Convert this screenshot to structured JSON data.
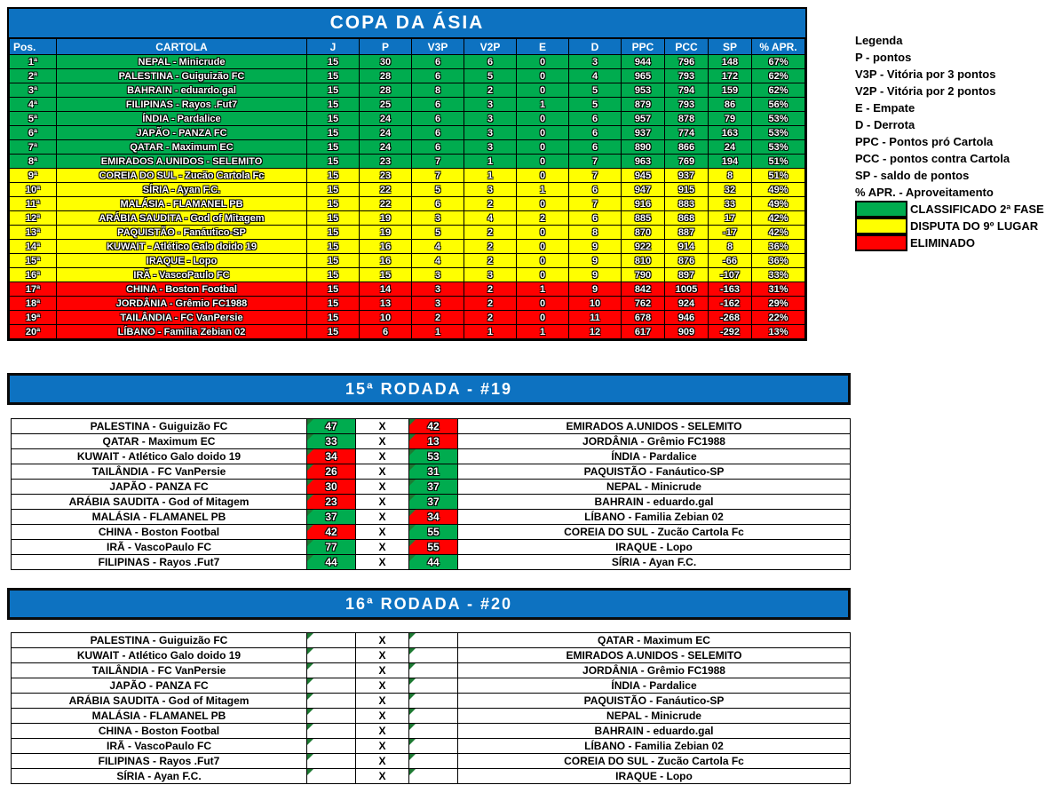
{
  "title": "COPA DA ÁSIA",
  "colors": {
    "header_blue": "#0D72C1",
    "classified_green": "#00AC4F",
    "playoff_yellow": "#FFFF00",
    "eliminated_red": "#FF0000",
    "corner_flag_green": "#1E7A33"
  },
  "standings": {
    "columns": [
      "Pos.",
      "CARTOLA",
      "J",
      "P",
      "V3P",
      "V2P",
      "E",
      "D",
      "PPC",
      "PCC",
      "SP",
      "% APR."
    ],
    "rows": [
      {
        "pos": "1ª",
        "team": "NEPAL - Minicrude",
        "j": "15",
        "p": "30",
        "v3p": "6",
        "v2p": "6",
        "e": "0",
        "d": "3",
        "ppc": "944",
        "pcc": "796",
        "sp": "148",
        "apr": "67%",
        "status": "green"
      },
      {
        "pos": "2ª",
        "team": "PALESTINA - Guiguizão FC",
        "j": "15",
        "p": "28",
        "v3p": "6",
        "v2p": "5",
        "e": "0",
        "d": "4",
        "ppc": "965",
        "pcc": "793",
        "sp": "172",
        "apr": "62%",
        "status": "green"
      },
      {
        "pos": "3ª",
        "team": "BAHRAIN - eduardo.gal",
        "j": "15",
        "p": "28",
        "v3p": "8",
        "v2p": "2",
        "e": "0",
        "d": "5",
        "ppc": "953",
        "pcc": "794",
        "sp": "159",
        "apr": "62%",
        "status": "green"
      },
      {
        "pos": "4ª",
        "team": "FILIPINAS - Rayos .Fut7",
        "j": "15",
        "p": "25",
        "v3p": "6",
        "v2p": "3",
        "e": "1",
        "d": "5",
        "ppc": "879",
        "pcc": "793",
        "sp": "86",
        "apr": "56%",
        "status": "green"
      },
      {
        "pos": "5ª",
        "team": "ÍNDIA - Pardalice",
        "j": "15",
        "p": "24",
        "v3p": "6",
        "v2p": "3",
        "e": "0",
        "d": "6",
        "ppc": "957",
        "pcc": "878",
        "sp": "79",
        "apr": "53%",
        "status": "green"
      },
      {
        "pos": "6ª",
        "team": "JAPÃO - PANZA FC",
        "j": "15",
        "p": "24",
        "v3p": "6",
        "v2p": "3",
        "e": "0",
        "d": "6",
        "ppc": "937",
        "pcc": "774",
        "sp": "163",
        "apr": "53%",
        "status": "green"
      },
      {
        "pos": "7ª",
        "team": "QATAR - Maximum EC",
        "j": "15",
        "p": "24",
        "v3p": "6",
        "v2p": "3",
        "e": "0",
        "d": "6",
        "ppc": "890",
        "pcc": "866",
        "sp": "24",
        "apr": "53%",
        "status": "green"
      },
      {
        "pos": "8ª",
        "team": "EMIRADOS A.UNIDOS - SELEMITO",
        "j": "15",
        "p": "23",
        "v3p": "7",
        "v2p": "1",
        "e": "0",
        "d": "7",
        "ppc": "963",
        "pcc": "769",
        "sp": "194",
        "apr": "51%",
        "status": "green"
      },
      {
        "pos": "9ª",
        "team": "COREIA DO SUL - Zucão Cartola Fc",
        "j": "15",
        "p": "23",
        "v3p": "7",
        "v2p": "1",
        "e": "0",
        "d": "7",
        "ppc": "945",
        "pcc": "937",
        "sp": "8",
        "apr": "51%",
        "status": "yellow"
      },
      {
        "pos": "10ª",
        "team": "SÍRIA - Ayan F.C.",
        "j": "15",
        "p": "22",
        "v3p": "5",
        "v2p": "3",
        "e": "1",
        "d": "6",
        "ppc": "947",
        "pcc": "915",
        "sp": "32",
        "apr": "49%",
        "status": "yellow"
      },
      {
        "pos": "11ª",
        "team": "MALÁSIA - FLAMANEL PB",
        "j": "15",
        "p": "22",
        "v3p": "6",
        "v2p": "2",
        "e": "0",
        "d": "7",
        "ppc": "916",
        "pcc": "883",
        "sp": "33",
        "apr": "49%",
        "status": "yellow"
      },
      {
        "pos": "12ª",
        "team": "ARÁBIA SAUDITA - God of Mitagem",
        "j": "15",
        "p": "19",
        "v3p": "3",
        "v2p": "4",
        "e": "2",
        "d": "6",
        "ppc": "885",
        "pcc": "868",
        "sp": "17",
        "apr": "42%",
        "status": "yellow"
      },
      {
        "pos": "13ª",
        "team": "PAQUISTÃO - Fanáutico-SP",
        "j": "15",
        "p": "19",
        "v3p": "5",
        "v2p": "2",
        "e": "0",
        "d": "8",
        "ppc": "870",
        "pcc": "887",
        "sp": "-17",
        "apr": "42%",
        "status": "yellow"
      },
      {
        "pos": "14ª",
        "team": "KUWAIT - Atlético Galo doido 19",
        "j": "15",
        "p": "16",
        "v3p": "4",
        "v2p": "2",
        "e": "0",
        "d": "9",
        "ppc": "922",
        "pcc": "914",
        "sp": "8",
        "apr": "36%",
        "status": "yellow"
      },
      {
        "pos": "15ª",
        "team": "IRAQUE - Lopo",
        "j": "15",
        "p": "16",
        "v3p": "4",
        "v2p": "2",
        "e": "0",
        "d": "9",
        "ppc": "810",
        "pcc": "876",
        "sp": "-66",
        "apr": "36%",
        "status": "yellow"
      },
      {
        "pos": "16ª",
        "team": "IRÃ - VascoPaulo FC",
        "j": "15",
        "p": "15",
        "v3p": "3",
        "v2p": "3",
        "e": "0",
        "d": "9",
        "ppc": "790",
        "pcc": "897",
        "sp": "-107",
        "apr": "33%",
        "status": "yellow"
      },
      {
        "pos": "17ª",
        "team": "CHINA - Boston Footbal",
        "j": "15",
        "p": "14",
        "v3p": "3",
        "v2p": "2",
        "e": "1",
        "d": "9",
        "ppc": "842",
        "pcc": "1005",
        "sp": "-163",
        "apr": "31%",
        "status": "red"
      },
      {
        "pos": "18ª",
        "team": "JORDÂNIA - Grêmio FC1988",
        "j": "15",
        "p": "13",
        "v3p": "3",
        "v2p": "2",
        "e": "0",
        "d": "10",
        "ppc": "762",
        "pcc": "924",
        "sp": "-162",
        "apr": "29%",
        "status": "red"
      },
      {
        "pos": "19ª",
        "team": "TAILÂNDIA - FC VanPersie",
        "j": "15",
        "p": "10",
        "v3p": "2",
        "v2p": "2",
        "e": "0",
        "d": "11",
        "ppc": "678",
        "pcc": "946",
        "sp": "-268",
        "apr": "22%",
        "status": "red"
      },
      {
        "pos": "20ª",
        "team": "LÍBANO - Familia Zebian 02",
        "j": "15",
        "p": "6",
        "v3p": "1",
        "v2p": "1",
        "e": "1",
        "d": "12",
        "ppc": "617",
        "pcc": "909",
        "sp": "-292",
        "apr": "13%",
        "status": "red"
      }
    ]
  },
  "legend": {
    "lines": [
      "Legenda",
      "P - pontos",
      "V3P - Vitória por 3 pontos",
      "V2P - Vitória por 2 pontos",
      "E - Empate",
      "D - Derrota",
      "PPC - Pontos pró Cartola",
      "PCC - pontos contra Cartola",
      "SP - saldo de pontos",
      "% APR. - Aproveitamento"
    ],
    "statuses": [
      {
        "color": "green",
        "label": "CLASSIFICADO 2ª FASE"
      },
      {
        "color": "yellow",
        "label": "DISPUTA DO 9º LUGAR"
      },
      {
        "color": "red",
        "label": "ELIMINADO"
      }
    ]
  },
  "rounds": [
    {
      "title": "15ª RODADA - #19",
      "x_label": "X",
      "matches": [
        {
          "home": "PALESTINA - Guiguizão FC",
          "home_score": "47",
          "home_result": "green",
          "away_score": "42",
          "away_result": "red",
          "away": "EMIRADOS A.UNIDOS - SELEMITO"
        },
        {
          "home": "QATAR - Maximum EC",
          "home_score": "33",
          "home_result": "green",
          "away_score": "13",
          "away_result": "red",
          "away": "JORDÂNIA - Grêmio FC1988"
        },
        {
          "home": "KUWAIT - Atlético Galo doido 19",
          "home_score": "34",
          "home_result": "red",
          "away_score": "53",
          "away_result": "green",
          "away": "ÍNDIA - Pardalice"
        },
        {
          "home": "TAILÂNDIA - FC VanPersie",
          "home_score": "26",
          "home_result": "red",
          "away_score": "31",
          "away_result": "green",
          "away": "PAQUISTÃO - Fanáutico-SP"
        },
        {
          "home": "JAPÃO - PANZA FC",
          "home_score": "30",
          "home_result": "red",
          "away_score": "37",
          "away_result": "green",
          "away": "NEPAL - Minicrude"
        },
        {
          "home": "ARÁBIA SAUDITA - God of Mitagem",
          "home_score": "23",
          "home_result": "red",
          "away_score": "37",
          "away_result": "green",
          "away": "BAHRAIN - eduardo.gal"
        },
        {
          "home": "MALÁSIA - FLAMANEL PB",
          "home_score": "37",
          "home_result": "green",
          "away_score": "34",
          "away_result": "red",
          "away": "LÍBANO - Familia Zebian 02"
        },
        {
          "home": "CHINA - Boston Footbal",
          "home_score": "42",
          "home_result": "red",
          "away_score": "55",
          "away_result": "green",
          "away": "COREIA DO SUL - Zucão Cartola Fc"
        },
        {
          "home": "IRÃ - VascoPaulo FC",
          "home_score": "77",
          "home_result": "green",
          "away_score": "55",
          "away_result": "red",
          "away": "IRAQUE - Lopo"
        },
        {
          "home": "FILIPINAS - Rayos .Fut7",
          "home_score": "44",
          "home_result": "green",
          "away_score": "44",
          "away_result": "green",
          "away": "SÍRIA - Ayan F.C."
        }
      ]
    },
    {
      "title": "16ª RODADA - #20",
      "x_label": "X",
      "matches": [
        {
          "home": "PALESTINA - Guiguizão FC",
          "home_score": "",
          "home_result": "none",
          "away_score": "",
          "away_result": "none",
          "away": "QATAR - Maximum EC"
        },
        {
          "home": "KUWAIT - Atlético Galo doido 19",
          "home_score": "",
          "home_result": "none",
          "away_score": "",
          "away_result": "none",
          "away": "EMIRADOS A.UNIDOS - SELEMITO"
        },
        {
          "home": "TAILÂNDIA - FC VanPersie",
          "home_score": "",
          "home_result": "none",
          "away_score": "",
          "away_result": "none",
          "away": "JORDÂNIA - Grêmio FC1988"
        },
        {
          "home": "JAPÃO - PANZA FC",
          "home_score": "",
          "home_result": "none",
          "away_score": "",
          "away_result": "none",
          "away": "ÍNDIA - Pardalice"
        },
        {
          "home": "ARÁBIA SAUDITA - God of Mitagem",
          "home_score": "",
          "home_result": "none",
          "away_score": "",
          "away_result": "none",
          "away": "PAQUISTÃO - Fanáutico-SP"
        },
        {
          "home": "MALÁSIA - FLAMANEL PB",
          "home_score": "",
          "home_result": "none",
          "away_score": "",
          "away_result": "none",
          "away": "NEPAL - Minicrude"
        },
        {
          "home": "CHINA - Boston Footbal",
          "home_score": "",
          "home_result": "none",
          "away_score": "",
          "away_result": "none",
          "away": "BAHRAIN - eduardo.gal"
        },
        {
          "home": "IRÃ - VascoPaulo FC",
          "home_score": "",
          "home_result": "none",
          "away_score": "",
          "away_result": "none",
          "away": "LÍBANO - Familia Zebian 02"
        },
        {
          "home": "FILIPINAS - Rayos .Fut7",
          "home_score": "",
          "home_result": "none",
          "away_score": "",
          "away_result": "none",
          "away": "COREIA DO SUL - Zucão Cartola Fc"
        },
        {
          "home": "SÍRIA - Ayan F.C.",
          "home_score": "",
          "home_result": "none",
          "away_score": "",
          "away_result": "none",
          "away": "IRAQUE - Lopo"
        }
      ]
    }
  ]
}
